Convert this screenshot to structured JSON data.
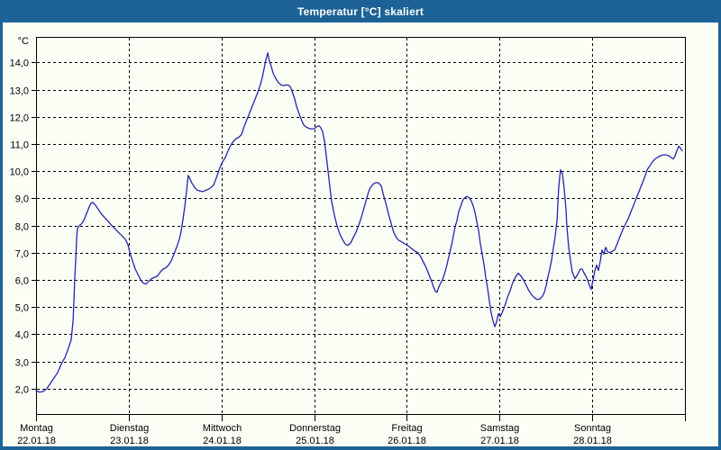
{
  "window": {
    "title": "Temperatur [°C] skaliert"
  },
  "colors": {
    "chrome": "#1d6296",
    "background": "#fbfef5",
    "line": "#2525ae",
    "grid": "#000000",
    "text": "#000000"
  },
  "chart_data": {
    "type": "line",
    "title": "Temperatur [°C] skaliert",
    "ylabel": "°C",
    "unit_label": "°C",
    "grid": "dashed",
    "ylim": [
      1.07,
      14.94
    ],
    "xlim_hours": [
      0,
      168
    ],
    "y_ticks": [
      {
        "value": 2,
        "label": "2,0"
      },
      {
        "value": 3,
        "label": "3,0"
      },
      {
        "value": 4,
        "label": "4,0"
      },
      {
        "value": 5,
        "label": "5,0"
      },
      {
        "value": 6,
        "label": "6,0"
      },
      {
        "value": 7,
        "label": "7,0"
      },
      {
        "value": 8,
        "label": "8,0"
      },
      {
        "value": 9,
        "label": "9,0"
      },
      {
        "value": 10,
        "label": "10,0"
      },
      {
        "value": 11,
        "label": "11,0"
      },
      {
        "value": 12,
        "label": "12,0"
      },
      {
        "value": 13,
        "label": "13,0"
      },
      {
        "value": 14,
        "label": "14,0"
      }
    ],
    "x_days": [
      {
        "name": "Montag",
        "date": "22.01.18"
      },
      {
        "name": "Dienstag",
        "date": "23.01.18"
      },
      {
        "name": "Mittwoch",
        "date": "24.01.18"
      },
      {
        "name": "Donnerstag",
        "date": "25.01.18"
      },
      {
        "name": "Freitag",
        "date": "26.01.18"
      },
      {
        "name": "Samstag",
        "date": "27.01.18"
      },
      {
        "name": "Sonntag",
        "date": "28.01.18"
      }
    ],
    "series": [
      {
        "name": "Temperatur [°C]",
        "color": "#2525ae",
        "points": [
          [
            0,
            1.93
          ],
          [
            0.9,
            1.87
          ],
          [
            1.9,
            1.9
          ],
          [
            2.8,
            2.0
          ],
          [
            3.7,
            2.2
          ],
          [
            4.7,
            2.4
          ],
          [
            5.6,
            2.6
          ],
          [
            6.5,
            2.9
          ],
          [
            7.5,
            3.15
          ],
          [
            8.4,
            3.5
          ],
          [
            9.1,
            3.8
          ],
          [
            9.6,
            4.5
          ],
          [
            9.8,
            5.2
          ],
          [
            10,
            6.0
          ],
          [
            10.3,
            6.8
          ],
          [
            10.5,
            7.5
          ],
          [
            10.7,
            7.9
          ],
          [
            11.2,
            8.0
          ],
          [
            11.7,
            8.05
          ],
          [
            12.4,
            8.2
          ],
          [
            13.1,
            8.45
          ],
          [
            13.8,
            8.7
          ],
          [
            14.2,
            8.82
          ],
          [
            14.7,
            8.85
          ],
          [
            15.4,
            8.75
          ],
          [
            16.1,
            8.6
          ],
          [
            16.8,
            8.45
          ],
          [
            17.7,
            8.3
          ],
          [
            18.7,
            8.15
          ],
          [
            19.6,
            8.0
          ],
          [
            20.3,
            7.9
          ],
          [
            21,
            7.8
          ],
          [
            21.7,
            7.7
          ],
          [
            22.4,
            7.6
          ],
          [
            23.1,
            7.5
          ],
          [
            23.8,
            7.3
          ],
          [
            24.3,
            7.0
          ],
          [
            25,
            6.7
          ],
          [
            25.7,
            6.4
          ],
          [
            26.4,
            6.2
          ],
          [
            27.1,
            6.0
          ],
          [
            27.8,
            5.88
          ],
          [
            28.5,
            5.85
          ],
          [
            29.2,
            5.95
          ],
          [
            29.9,
            6.05
          ],
          [
            30.8,
            6.1
          ],
          [
            31.5,
            6.15
          ],
          [
            32.2,
            6.3
          ],
          [
            32.9,
            6.4
          ],
          [
            33.6,
            6.45
          ],
          [
            34.3,
            6.55
          ],
          [
            35,
            6.7
          ],
          [
            35.7,
            6.95
          ],
          [
            36.4,
            7.2
          ],
          [
            37.1,
            7.5
          ],
          [
            37.6,
            7.8
          ],
          [
            38,
            8.2
          ],
          [
            38.5,
            8.7
          ],
          [
            39,
            9.3
          ],
          [
            39.2,
            9.6
          ],
          [
            39.4,
            9.85
          ],
          [
            39.9,
            9.7
          ],
          [
            40.4,
            9.55
          ],
          [
            41.1,
            9.4
          ],
          [
            41.8,
            9.3
          ],
          [
            42.5,
            9.27
          ],
          [
            43.2,
            9.25
          ],
          [
            43.9,
            9.3
          ],
          [
            44.6,
            9.33
          ],
          [
            45.3,
            9.4
          ],
          [
            46,
            9.5
          ],
          [
            46.4,
            9.65
          ],
          [
            46.9,
            9.85
          ],
          [
            47.4,
            10.05
          ],
          [
            47.8,
            10.2
          ],
          [
            48.3,
            10.35
          ],
          [
            49,
            10.5
          ],
          [
            49.7,
            10.75
          ],
          [
            50.4,
            10.95
          ],
          [
            51.1,
            11.1
          ],
          [
            51.8,
            11.2
          ],
          [
            52.5,
            11.25
          ],
          [
            53.2,
            11.35
          ],
          [
            53.9,
            11.65
          ],
          [
            54.6,
            11.9
          ],
          [
            55.3,
            12.15
          ],
          [
            56,
            12.4
          ],
          [
            56.7,
            12.65
          ],
          [
            57.4,
            12.9
          ],
          [
            58.1,
            13.2
          ],
          [
            58.6,
            13.45
          ],
          [
            59,
            13.75
          ],
          [
            59.5,
            14.1
          ],
          [
            60,
            14.35
          ],
          [
            60.4,
            14.05
          ],
          [
            60.9,
            13.85
          ],
          [
            61.4,
            13.6
          ],
          [
            62.1,
            13.4
          ],
          [
            62.8,
            13.25
          ],
          [
            63.5,
            13.17
          ],
          [
            64.2,
            13.15
          ],
          [
            64.9,
            13.18
          ],
          [
            65.6,
            13.15
          ],
          [
            66,
            13.05
          ],
          [
            66.5,
            12.85
          ],
          [
            67,
            12.65
          ],
          [
            67.4,
            12.4
          ],
          [
            67.9,
            12.2
          ],
          [
            68.4,
            12.0
          ],
          [
            68.8,
            11.85
          ],
          [
            69.3,
            11.7
          ],
          [
            70,
            11.62
          ],
          [
            70.7,
            11.57
          ],
          [
            71.4,
            11.55
          ],
          [
            72.1,
            11.57
          ],
          [
            72.8,
            11.65
          ],
          [
            73.3,
            11.67
          ],
          [
            73.7,
            11.6
          ],
          [
            74.2,
            11.45
          ],
          [
            74.7,
            11.1
          ],
          [
            75.1,
            10.6
          ],
          [
            75.6,
            10.0
          ],
          [
            76.1,
            9.4
          ],
          [
            76.5,
            8.9
          ],
          [
            77.2,
            8.4
          ],
          [
            77.9,
            8.0
          ],
          [
            78.6,
            7.7
          ],
          [
            79.3,
            7.5
          ],
          [
            80,
            7.33
          ],
          [
            80.7,
            7.27
          ],
          [
            81.4,
            7.35
          ],
          [
            82.1,
            7.55
          ],
          [
            82.8,
            7.75
          ],
          [
            83.5,
            8.0
          ],
          [
            84.2,
            8.3
          ],
          [
            84.9,
            8.65
          ],
          [
            85.6,
            9.0
          ],
          [
            86.1,
            9.25
          ],
          [
            86.6,
            9.4
          ],
          [
            87.3,
            9.53
          ],
          [
            88,
            9.58
          ],
          [
            88.7,
            9.57
          ],
          [
            89.4,
            9.45
          ],
          [
            89.8,
            9.2
          ],
          [
            90.3,
            8.95
          ],
          [
            90.8,
            8.7
          ],
          [
            91.2,
            8.45
          ],
          [
            91.7,
            8.2
          ],
          [
            92.2,
            7.95
          ],
          [
            92.6,
            7.75
          ],
          [
            93.3,
            7.55
          ],
          [
            94,
            7.45
          ],
          [
            94.7,
            7.4
          ],
          [
            95.4,
            7.33
          ],
          [
            96.1,
            7.28
          ],
          [
            96.8,
            7.2
          ],
          [
            97.5,
            7.12
          ],
          [
            98.2,
            7.05
          ],
          [
            98.9,
            7.0
          ],
          [
            99.6,
            6.85
          ],
          [
            100.3,
            6.65
          ],
          [
            101,
            6.45
          ],
          [
            101.7,
            6.2
          ],
          [
            102.4,
            5.95
          ],
          [
            102.9,
            5.75
          ],
          [
            103.4,
            5.58
          ],
          [
            103.8,
            5.55
          ],
          [
            104.3,
            5.75
          ],
          [
            104.8,
            5.9
          ],
          [
            105.2,
            6.0
          ],
          [
            105.7,
            6.2
          ],
          [
            106.2,
            6.45
          ],
          [
            106.6,
            6.7
          ],
          [
            107.1,
            7.0
          ],
          [
            107.6,
            7.3
          ],
          [
            108,
            7.6
          ],
          [
            108.5,
            7.95
          ],
          [
            109,
            8.2
          ],
          [
            109.4,
            8.5
          ],
          [
            109.9,
            8.7
          ],
          [
            110.4,
            8.9
          ],
          [
            110.8,
            9.0
          ],
          [
            111.5,
            9.07
          ],
          [
            112.2,
            9.02
          ],
          [
            112.7,
            8.9
          ],
          [
            113.2,
            8.72
          ],
          [
            113.6,
            8.5
          ],
          [
            114.1,
            8.15
          ],
          [
            114.6,
            7.8
          ],
          [
            115,
            7.35
          ],
          [
            115.5,
            6.95
          ],
          [
            116,
            6.55
          ],
          [
            116.4,
            6.1
          ],
          [
            116.9,
            5.7
          ],
          [
            117.4,
            5.2
          ],
          [
            117.8,
            4.8
          ],
          [
            118.3,
            4.5
          ],
          [
            118.8,
            4.28
          ],
          [
            119.2,
            4.45
          ],
          [
            119.7,
            4.75
          ],
          [
            120.2,
            4.65
          ],
          [
            120.6,
            4.78
          ],
          [
            121.1,
            4.95
          ],
          [
            121.6,
            5.15
          ],
          [
            122,
            5.35
          ],
          [
            122.7,
            5.6
          ],
          [
            123.4,
            5.9
          ],
          [
            124.1,
            6.1
          ],
          [
            124.8,
            6.25
          ],
          [
            125.5,
            6.15
          ],
          [
            126.2,
            6.0
          ],
          [
            126.9,
            5.8
          ],
          [
            127.6,
            5.6
          ],
          [
            128.3,
            5.45
          ],
          [
            129,
            5.35
          ],
          [
            129.7,
            5.28
          ],
          [
            130.4,
            5.3
          ],
          [
            131.1,
            5.4
          ],
          [
            131.6,
            5.55
          ],
          [
            132.1,
            5.8
          ],
          [
            132.5,
            6.1
          ],
          [
            133,
            6.4
          ],
          [
            133.5,
            6.75
          ],
          [
            133.9,
            7.15
          ],
          [
            134.4,
            7.6
          ],
          [
            134.9,
            8.2
          ],
          [
            135.1,
            8.8
          ],
          [
            135.3,
            9.4
          ],
          [
            135.6,
            9.8
          ],
          [
            135.8,
            10.05
          ],
          [
            136.3,
            9.9
          ],
          [
            136.7,
            9.4
          ],
          [
            137.2,
            8.6
          ],
          [
            137.4,
            8.0
          ],
          [
            137.9,
            7.2
          ],
          [
            138.4,
            6.7
          ],
          [
            138.8,
            6.3
          ],
          [
            139.5,
            6.05
          ],
          [
            140.2,
            6.2
          ],
          [
            140.9,
            6.4
          ],
          [
            141.4,
            6.4
          ],
          [
            141.9,
            6.25
          ],
          [
            142.3,
            6.15
          ],
          [
            142.8,
            6.0
          ],
          [
            143.3,
            5.8
          ],
          [
            143.7,
            5.65
          ],
          [
            144.2,
            6.0
          ],
          [
            144.7,
            6.35
          ],
          [
            145.1,
            6.55
          ],
          [
            145.6,
            6.35
          ],
          [
            146.1,
            6.7
          ],
          [
            146.5,
            7.1
          ],
          [
            147,
            6.95
          ],
          [
            147.5,
            7.2
          ],
          [
            147.9,
            7.05
          ],
          [
            148.4,
            7.0
          ],
          [
            149.1,
            7.05
          ],
          [
            149.8,
            7.1
          ],
          [
            150.5,
            7.35
          ],
          [
            151.2,
            7.6
          ],
          [
            151.9,
            7.85
          ],
          [
            152.6,
            8.05
          ],
          [
            153.3,
            8.25
          ],
          [
            154,
            8.5
          ],
          [
            154.7,
            8.75
          ],
          [
            155.4,
            9.0
          ],
          [
            156.1,
            9.25
          ],
          [
            156.8,
            9.5
          ],
          [
            157.5,
            9.75
          ],
          [
            158,
            9.95
          ],
          [
            158.4,
            10.1
          ],
          [
            158.9,
            10.2
          ],
          [
            159.6,
            10.35
          ],
          [
            160.3,
            10.45
          ],
          [
            161,
            10.52
          ],
          [
            161.7,
            10.57
          ],
          [
            162.4,
            10.6
          ],
          [
            163.1,
            10.6
          ],
          [
            163.8,
            10.57
          ],
          [
            164.5,
            10.5
          ],
          [
            165,
            10.45
          ],
          [
            165.4,
            10.55
          ],
          [
            165.9,
            10.75
          ],
          [
            166.4,
            10.92
          ],
          [
            166.8,
            10.85
          ],
          [
            167.3,
            10.75
          ]
        ]
      }
    ]
  }
}
